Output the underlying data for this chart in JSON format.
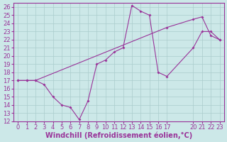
{
  "xlabel": "Windchill (Refroidissement éolien,°C)",
  "bg_color": "#cce8e8",
  "line_color": "#993399",
  "grid_color": "#aacccc",
  "xlim": [
    -0.5,
    23.5
  ],
  "ylim": [
    12,
    26.5
  ],
  "xticks": [
    0,
    1,
    2,
    3,
    4,
    5,
    6,
    7,
    8,
    9,
    10,
    11,
    12,
    13,
    14,
    15,
    16,
    17,
    20,
    21,
    22,
    23
  ],
  "yticks": [
    12,
    13,
    14,
    15,
    16,
    17,
    18,
    19,
    20,
    21,
    22,
    23,
    24,
    25,
    26
  ],
  "line1_x": [
    0,
    1,
    2,
    3,
    4,
    5,
    6,
    7,
    8,
    9,
    10,
    11,
    12,
    13,
    14,
    15,
    16,
    17,
    20,
    21,
    22,
    23
  ],
  "line1_y": [
    17,
    17,
    17,
    16.5,
    15.0,
    14.0,
    13.7,
    12.2,
    14.5,
    19.0,
    19.5,
    20.5,
    21.0,
    26.2,
    25.5,
    25.0,
    18.0,
    17.5,
    21.0,
    23.0,
    23.0,
    22.0
  ],
  "line2_x": [
    0,
    1,
    2,
    17,
    20,
    21,
    22,
    23
  ],
  "line2_y": [
    17,
    17,
    17,
    23.5,
    24.5,
    24.8,
    22.5,
    22.0
  ],
  "tick_fontsize": 6,
  "label_fontsize": 7
}
